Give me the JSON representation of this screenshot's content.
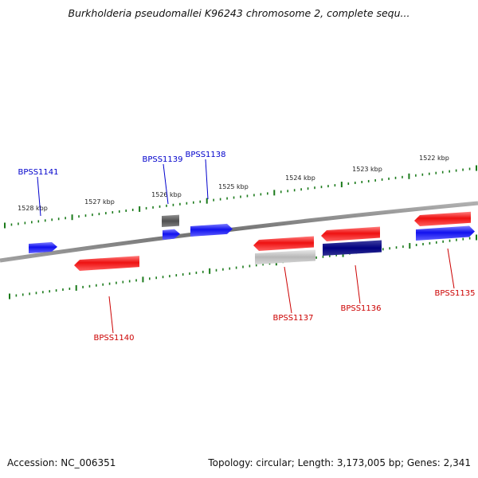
{
  "title": "Burkholderia pseudomallei K96243 chromosome 2, complete sequ...",
  "footer": {
    "accession": "Accession: NC_006351",
    "summary": "Topology: circular; Length: 3,173,005 bp; Genes: 2,341"
  },
  "colors": {
    "backbone": "#808080",
    "tick": "#1a7a1a",
    "forward_label": "#0000cc",
    "reverse_label": "#cc0000",
    "gene_red": "#ee1111",
    "gene_blue": "#1111ee",
    "gene_navy": "#000080",
    "gene_gray": "#c0c0c0",
    "gene_dark_gray": "#555555"
  },
  "ticks": [
    {
      "label": "1528 kbp"
    },
    {
      "label": "1527 kbp"
    },
    {
      "label": "1526 kbp"
    },
    {
      "label": "1525 kbp"
    },
    {
      "label": "1524 kbp"
    },
    {
      "label": "1523 kbp"
    },
    {
      "label": "1522 kbp"
    }
  ],
  "genes": [
    {
      "name": "BPSS1141",
      "strand": "+",
      "labeled": true
    },
    {
      "name": "BPSS1140",
      "strand": "-",
      "labeled": true
    },
    {
      "name": "BPSS1139",
      "strand": "+",
      "labeled": true
    },
    {
      "name": "BPSS1139-partner",
      "strand": "+",
      "labeled": false
    },
    {
      "name": "BPSS1138",
      "strand": "+",
      "labeled": true
    },
    {
      "name": "BPSS1137",
      "strand": "-",
      "labeled": true
    },
    {
      "name": "BPSS1137-partner",
      "strand": "-",
      "labeled": false
    },
    {
      "name": "BPSS1136",
      "strand": "-",
      "labeled": true
    },
    {
      "name": "BPSS1136-partner",
      "strand": "-",
      "labeled": false
    },
    {
      "name": "BPSS1135",
      "strand": "-",
      "labeled": true
    },
    {
      "name": "BPSS1135-partner",
      "strand": "-",
      "labeled": false
    }
  ]
}
